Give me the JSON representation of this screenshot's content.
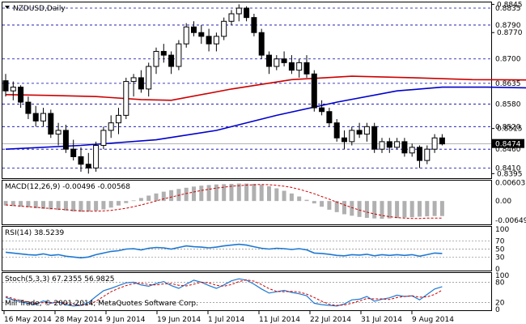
{
  "window": {
    "symbol_label": "NZDUSD,Daily",
    "copyright": "Mill Trade, © 2001-2014, MetaQuotes Software Corp."
  },
  "colors": {
    "background": "#ffffff",
    "bull_candle": "#ffffff",
    "bear_candle": "#000000",
    "ma_fast": "#0000cc",
    "ma_slow": "#cc0000",
    "channel": "#0000cc",
    "level_line": "#0000aa",
    "current_price_box": "#000000",
    "macd_hist": "#b0b0b0",
    "macd_signal": "#cc0000",
    "rsi_line": "#1e78d2",
    "stoch_main": "#1e78d2",
    "stoch_signal": "#cc0000"
  },
  "chart_data": [
    {
      "type": "candlestick",
      "title": "NZDUSD,Daily",
      "ylim": [
        0.8385,
        0.8848
      ],
      "levels": [
        "0.8835",
        "0.8790",
        "0.8700",
        "0.8635",
        "0.8580",
        "0.8520",
        "0.8460",
        "0.8410"
      ],
      "price_ticks": [
        "0.8845",
        "0.8770",
        "0.8515",
        "0.8395"
      ],
      "current_price": "0.8474",
      "dates": [
        "16 May 2014",
        "28 May 2014",
        "9 Jun 2014",
        "19 Jun 2014",
        "1 Jul 2014",
        "11 Jul 2014",
        "22 Jul 2014",
        "31 Jul 2014",
        "9 Aug 2014"
      ],
      "candles": [
        [
          0.8642,
          0.866,
          0.86,
          0.8615
        ],
        [
          0.8615,
          0.864,
          0.859,
          0.8625
        ],
        [
          0.8625,
          0.863,
          0.857,
          0.8585
        ],
        [
          0.8585,
          0.86,
          0.854,
          0.8555
        ],
        [
          0.8555,
          0.8575,
          0.852,
          0.8535
        ],
        [
          0.8535,
          0.857,
          0.852,
          0.8555
        ],
        [
          0.8555,
          0.8565,
          0.849,
          0.85
        ],
        [
          0.85,
          0.853,
          0.847,
          0.851
        ],
        [
          0.851,
          0.8525,
          0.845,
          0.846
        ],
        [
          0.846,
          0.8485,
          0.843,
          0.844
        ],
        [
          0.844,
          0.8465,
          0.84,
          0.842
        ],
        [
          0.842,
          0.845,
          0.8395,
          0.841
        ],
        [
          0.841,
          0.848,
          0.84,
          0.847
        ],
        [
          0.847,
          0.852,
          0.846,
          0.851
        ],
        [
          0.851,
          0.855,
          0.849,
          0.853
        ],
        [
          0.853,
          0.857,
          0.85,
          0.855
        ],
        [
          0.855,
          0.865,
          0.854,
          0.864
        ],
        [
          0.864,
          0.866,
          0.86,
          0.865
        ],
        [
          0.865,
          0.867,
          0.861,
          0.862
        ],
        [
          0.862,
          0.869,
          0.86,
          0.868
        ],
        [
          0.868,
          0.873,
          0.866,
          0.872
        ],
        [
          0.872,
          0.874,
          0.869,
          0.871
        ],
        [
          0.871,
          0.872,
          0.866,
          0.868
        ],
        [
          0.868,
          0.875,
          0.867,
          0.874
        ],
        [
          0.874,
          0.8795,
          0.873,
          0.8785
        ],
        [
          0.8785,
          0.88,
          0.876,
          0.877
        ],
        [
          0.877,
          0.879,
          0.874,
          0.876
        ],
        [
          0.876,
          0.878,
          0.872,
          0.874
        ],
        [
          0.874,
          0.877,
          0.872,
          0.876
        ],
        [
          0.876,
          0.881,
          0.875,
          0.88
        ],
        [
          0.88,
          0.883,
          0.879,
          0.882
        ],
        [
          0.882,
          0.8845,
          0.88,
          0.8835
        ],
        [
          0.8835,
          0.884,
          0.88,
          0.881
        ],
        [
          0.881,
          0.882,
          0.876,
          0.877
        ],
        [
          0.877,
          0.878,
          0.87,
          0.871
        ],
        [
          0.871,
          0.872,
          0.866,
          0.868
        ],
        [
          0.868,
          0.871,
          0.867,
          0.87
        ],
        [
          0.87,
          0.872,
          0.868,
          0.869
        ],
        [
          0.869,
          0.871,
          0.866,
          0.867
        ],
        [
          0.867,
          0.87,
          0.865,
          0.869
        ],
        [
          0.869,
          0.871,
          0.865,
          0.866
        ],
        [
          0.866,
          0.867,
          0.856,
          0.857
        ],
        [
          0.857,
          0.859,
          0.855,
          0.856
        ],
        [
          0.856,
          0.857,
          0.852,
          0.853
        ],
        [
          0.853,
          0.854,
          0.848,
          0.849
        ],
        [
          0.849,
          0.851,
          0.846,
          0.848
        ],
        [
          0.848,
          0.852,
          0.847,
          0.851
        ],
        [
          0.851,
          0.853,
          0.849,
          0.85
        ],
        [
          0.85,
          0.853,
          0.848,
          0.852
        ],
        [
          0.852,
          0.853,
          0.845,
          0.846
        ],
        [
          0.846,
          0.849,
          0.845,
          0.848
        ],
        [
          0.848,
          0.849,
          0.845,
          0.8465
        ],
        [
          0.8465,
          0.849,
          0.846,
          0.848
        ],
        [
          0.848,
          0.849,
          0.844,
          0.845
        ],
        [
          0.845,
          0.8475,
          0.844,
          0.8465
        ],
        [
          0.8465,
          0.847,
          0.841,
          0.843
        ],
        [
          0.843,
          0.847,
          0.842,
          0.846
        ],
        [
          0.846,
          0.85,
          0.845,
          0.849
        ],
        [
          0.849,
          0.85,
          0.847,
          0.8474
        ]
      ],
      "ma_fast": [
        [
          0,
          0.846
        ],
        [
          10,
          0.847
        ],
        [
          20,
          0.8485
        ],
        [
          28,
          0.851
        ],
        [
          36,
          0.855
        ],
        [
          44,
          0.8585
        ],
        [
          52,
          0.8615
        ],
        [
          58,
          0.8625
        ],
        [
          64,
          0.8625
        ],
        [
          72,
          0.8622
        ],
        [
          78,
          0.8617
        ],
        [
          82,
          0.8617
        ]
      ],
      "ma_slow": [
        [
          0,
          0.8605
        ],
        [
          6,
          0.8603
        ],
        [
          12,
          0.86
        ],
        [
          18,
          0.8592
        ],
        [
          22,
          0.859
        ],
        [
          30,
          0.862
        ],
        [
          38,
          0.8645
        ],
        [
          46,
          0.8654
        ],
        [
          54,
          0.865
        ],
        [
          62,
          0.8645
        ],
        [
          70,
          0.8644
        ],
        [
          76,
          0.8643
        ],
        [
          82,
          0.8637
        ]
      ],
      "channel_upper": [
        [
          71,
          0.8525
        ],
        [
          88,
          0.85
        ]
      ],
      "channel_lower": [
        [
          71,
          0.8415
        ],
        [
          88,
          0.8387
        ]
      ]
    },
    {
      "type": "histogram",
      "title": "MACD(12,26,9) -0.00496 -0.00568",
      "ylim": [
        -0.0075,
        0.0065
      ],
      "ticks": [
        "0.00603",
        "0.00",
        "-0.00649"
      ],
      "values": [
        -0.0015,
        -0.0017,
        -0.0019,
        -0.0021,
        -0.0024,
        -0.0026,
        -0.0028,
        -0.003,
        -0.0032,
        -0.0035,
        -0.0036,
        -0.0035,
        -0.0032,
        -0.0028,
        -0.0022,
        -0.0015,
        -0.0007,
        0.0002,
        0.001,
        0.0018,
        0.0025,
        0.0031,
        0.0036,
        0.004,
        0.0044,
        0.0048,
        0.0051,
        0.0053,
        0.0055,
        0.0056,
        0.0057,
        0.0058,
        0.0058,
        0.0057,
        0.0054,
        0.0049,
        0.0042,
        0.0034,
        0.0025,
        0.0015,
        0.0004,
        -0.0008,
        -0.0019,
        -0.0029,
        -0.0037,
        -0.0044,
        -0.0049,
        -0.0053,
        -0.0056,
        -0.0058,
        -0.0059,
        -0.0058,
        -0.0057,
        -0.0055,
        -0.0054,
        -0.0052,
        -0.0051,
        -0.005,
        -0.005
      ],
      "signal": [
        -0.0013,
        -0.0015,
        -0.0017,
        -0.0019,
        -0.0021,
        -0.0023,
        -0.0025,
        -0.0027,
        -0.0029,
        -0.0031,
        -0.0033,
        -0.0034,
        -0.0034,
        -0.0033,
        -0.0031,
        -0.0028,
        -0.0024,
        -0.0019,
        -0.0013,
        -0.0007,
        0.0,
        0.0007,
        0.0013,
        0.0019,
        0.0025,
        0.003,
        0.0035,
        0.0039,
        0.0043,
        0.0046,
        0.0049,
        0.0051,
        0.0053,
        0.0054,
        0.0055,
        0.0054,
        0.0052,
        0.0049,
        0.0045,
        0.0039,
        0.0032,
        0.0024,
        0.0015,
        0.0006,
        -0.0004,
        -0.0013,
        -0.0022,
        -0.003,
        -0.0037,
        -0.0043,
        -0.0048,
        -0.0052,
        -0.0055,
        -0.0057,
        -0.0058,
        -0.0058,
        -0.0057,
        -0.0057,
        -0.0057
      ]
    },
    {
      "type": "line",
      "title": "RSI(14) 38.5239",
      "ylim": [
        0,
        100
      ],
      "ticks": [
        "100",
        "70",
        "50",
        "30",
        "0"
      ],
      "values": [
        42,
        40,
        38,
        36,
        35,
        38,
        34,
        36,
        32,
        30,
        28,
        30,
        36,
        40,
        44,
        46,
        50,
        51,
        48,
        52,
        54,
        53,
        50,
        54,
        58,
        56,
        55,
        53,
        55,
        58,
        60,
        62,
        60,
        56,
        52,
        50,
        52,
        51,
        49,
        51,
        48,
        40,
        39,
        37,
        34,
        33,
        36,
        35,
        37,
        33,
        36,
        34,
        36,
        34,
        36,
        32,
        36,
        40,
        39
      ]
    },
    {
      "type": "line",
      "title": "Stoch(5,3,3) 67.2355 56.9825",
      "ylim": [
        0,
        100
      ],
      "ticks": [
        "100",
        "80",
        "20",
        "0"
      ],
      "values": [
        35,
        28,
        22,
        18,
        15,
        25,
        18,
        22,
        14,
        10,
        12,
        20,
        38,
        55,
        62,
        70,
        78,
        80,
        72,
        68,
        76,
        82,
        70,
        62,
        74,
        86,
        80,
        70,
        62,
        72,
        84,
        90,
        86,
        74,
        60,
        48,
        52,
        56,
        50,
        46,
        40,
        18,
        14,
        12,
        10,
        16,
        28,
        30,
        38,
        24,
        30,
        34,
        42,
        38,
        40,
        28,
        44,
        60,
        67
      ],
      "signal": [
        38,
        32,
        26,
        22,
        18,
        20,
        20,
        22,
        18,
        15,
        12,
        14,
        24,
        38,
        52,
        62,
        70,
        76,
        77,
        73,
        72,
        75,
        76,
        71,
        69,
        74,
        80,
        78,
        71,
        68,
        73,
        82,
        87,
        83,
        73,
        61,
        53,
        52,
        53,
        51,
        45,
        35,
        24,
        15,
        12,
        13,
        18,
        25,
        32,
        31,
        31,
        29,
        35,
        38,
        40,
        36,
        37,
        44,
        57
      ]
    }
  ]
}
